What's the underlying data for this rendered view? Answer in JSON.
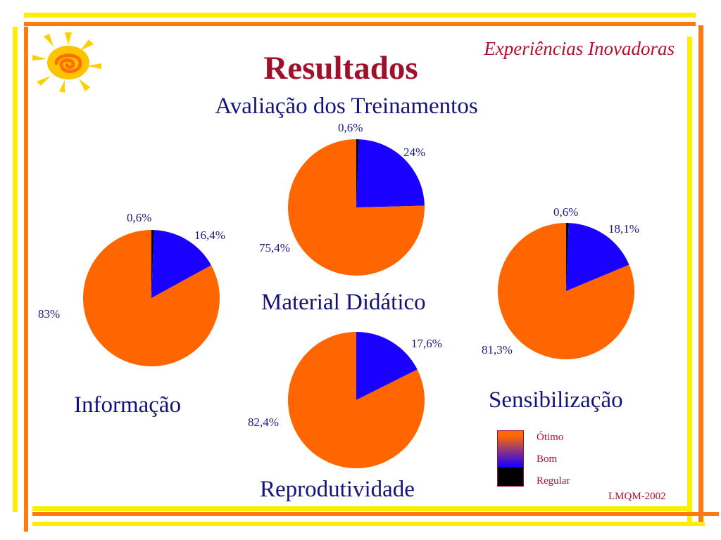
{
  "header": {
    "brand": "Experiências Inovadoras",
    "title": "Resultados",
    "subtitle": "Avaliação dos Treinamentos"
  },
  "footer": {
    "code": "LMQM-2002"
  },
  "colors": {
    "otimo": "#ff6600",
    "bom": "#1a00ff",
    "regular": "#000000",
    "title": "#a0102a",
    "text": "#15127a",
    "stripe_yellow": "#ffee00",
    "stripe_orange": "#ff7a10"
  },
  "legend": {
    "items": [
      {
        "label": "Ótimo",
        "color": "#ff6600"
      },
      {
        "label": "Bom",
        "color": "#1a00ff"
      },
      {
        "label": "Regular",
        "color": "#000000"
      }
    ]
  },
  "chart_data": [
    {
      "type": "pie",
      "title": "Material Didático",
      "categories": [
        "Ótimo",
        "Bom",
        "Regular"
      ],
      "values": [
        75.4,
        24,
        0.6
      ],
      "labels": [
        "75,4%",
        "24%",
        "0,6%"
      ]
    },
    {
      "type": "pie",
      "title": "Informação",
      "categories": [
        "Ótimo",
        "Bom",
        "Regular"
      ],
      "values": [
        83,
        16.4,
        0.6
      ],
      "labels": [
        "83%",
        "16,4%",
        "0,6%"
      ]
    },
    {
      "type": "pie",
      "title": "Sensibilização",
      "categories": [
        "Ótimo",
        "Bom",
        "Regular"
      ],
      "values": [
        81.3,
        18.1,
        0.6
      ],
      "labels": [
        "81,3%",
        "18,1%",
        "0,6%"
      ]
    },
    {
      "type": "pie",
      "title": "Reprodutividade",
      "categories": [
        "Ótimo",
        "Bom"
      ],
      "values": [
        82.4,
        17.6
      ],
      "labels": [
        "82,4%",
        "17,6%"
      ]
    }
  ]
}
